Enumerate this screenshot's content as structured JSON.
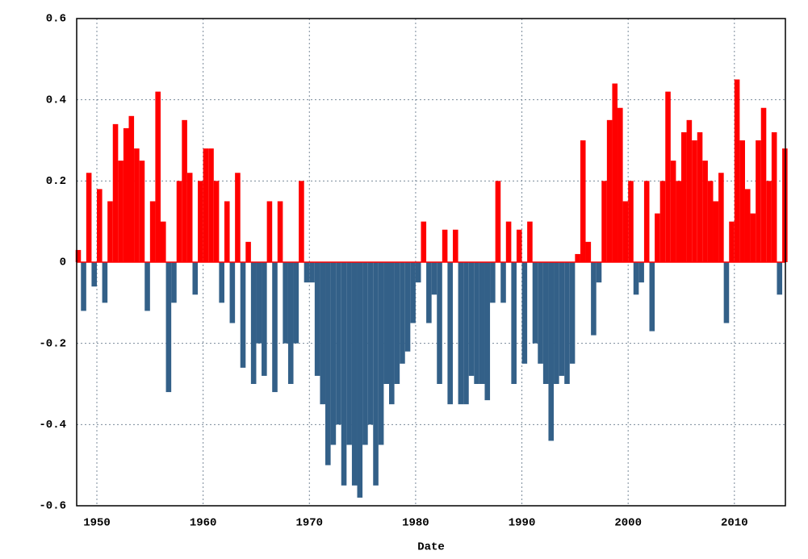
{
  "chart_data": {
    "type": "bar",
    "x_label": "Date",
    "x": [
      1948.0,
      1948.5,
      1949.0,
      1949.5,
      1950.0,
      1950.5,
      1951.0,
      1951.5,
      1952.0,
      1952.5,
      1953.0,
      1953.5,
      1954.0,
      1954.5,
      1955.0,
      1955.5,
      1956.0,
      1956.5,
      1957.0,
      1957.5,
      1958.0,
      1958.5,
      1959.0,
      1959.5,
      1960.0,
      1960.5,
      1961.0,
      1961.5,
      1962.0,
      1962.5,
      1963.0,
      1963.5,
      1964.0,
      1964.5,
      1965.0,
      1965.5,
      1966.0,
      1966.5,
      1967.0,
      1967.5,
      1968.0,
      1968.5,
      1969.0,
      1969.5,
      1970.0,
      1970.5,
      1971.0,
      1971.5,
      1972.0,
      1972.5,
      1973.0,
      1973.5,
      1974.0,
      1974.5,
      1975.0,
      1975.5,
      1976.0,
      1976.5,
      1977.0,
      1977.5,
      1978.0,
      1978.5,
      1979.0,
      1979.5,
      1980.0,
      1980.5,
      1981.0,
      1981.5,
      1982.0,
      1982.5,
      1983.0,
      1983.5,
      1984.0,
      1984.5,
      1985.0,
      1985.5,
      1986.0,
      1986.5,
      1987.0,
      1987.5,
      1988.0,
      1988.5,
      1989.0,
      1989.5,
      1990.0,
      1990.5,
      1991.0,
      1991.5,
      1992.0,
      1992.5,
      1993.0,
      1993.5,
      1994.0,
      1994.5,
      1995.0,
      1995.5,
      1996.0,
      1996.5,
      1997.0,
      1997.5,
      1998.0,
      1998.5,
      1999.0,
      1999.5,
      2000.0,
      2000.5,
      2001.0,
      2001.5,
      2002.0,
      2002.5,
      2003.0,
      2003.5,
      2004.0,
      2004.5,
      2005.0,
      2005.5,
      2006.0,
      2006.5,
      2007.0,
      2007.5,
      2008.0,
      2008.5,
      2009.0,
      2009.5,
      2010.0,
      2010.5,
      2011.0,
      2011.5,
      2012.0,
      2012.5,
      2013.0,
      2013.5,
      2014.0,
      2014.5
    ],
    "values": [
      0.03,
      -0.12,
      0.22,
      -0.06,
      0.18,
      -0.1,
      0.15,
      0.34,
      0.25,
      0.33,
      0.36,
      0.28,
      0.25,
      -0.12,
      0.15,
      0.42,
      0.1,
      -0.32,
      -0.1,
      0.2,
      0.35,
      0.22,
      -0.08,
      0.2,
      0.28,
      0.28,
      0.2,
      -0.1,
      0.15,
      -0.15,
      0.22,
      -0.26,
      0.05,
      -0.3,
      -0.2,
      -0.28,
      0.15,
      -0.32,
      0.15,
      -0.2,
      -0.3,
      -0.2,
      0.2,
      -0.05,
      -0.05,
      -0.28,
      -0.35,
      -0.5,
      -0.45,
      -0.4,
      -0.55,
      -0.45,
      -0.55,
      -0.58,
      -0.45,
      -0.4,
      -0.55,
      -0.45,
      -0.3,
      -0.35,
      -0.3,
      -0.25,
      -0.22,
      -0.15,
      -0.05,
      0.1,
      -0.15,
      -0.08,
      -0.3,
      0.08,
      -0.35,
      0.08,
      -0.35,
      -0.35,
      -0.28,
      -0.3,
      -0.3,
      -0.34,
      -0.1,
      0.2,
      -0.1,
      0.1,
      -0.3,
      0.08,
      -0.25,
      0.1,
      -0.2,
      -0.25,
      -0.3,
      -0.44,
      -0.3,
      -0.28,
      -0.3,
      -0.25,
      0.02,
      0.3,
      0.05,
      -0.18,
      -0.05,
      0.2,
      0.35,
      0.44,
      0.38,
      0.15,
      0.2,
      -0.08,
      -0.05,
      0.2,
      -0.17,
      0.12,
      0.2,
      0.42,
      0.25,
      0.2,
      0.32,
      0.35,
      0.3,
      0.32,
      0.25,
      0.2,
      0.15,
      0.22,
      -0.15,
      0.1,
      0.45,
      0.3,
      0.18,
      0.12,
      0.3,
      0.38,
      0.2,
      0.32,
      -0.08,
      0.28
    ],
    "positive_color": "#ff0000",
    "negative_color": "#336088",
    "xlim": [
      1948.1,
      2014.8
    ],
    "xticks": [
      1950,
      1960,
      1970,
      1980,
      1990,
      2000,
      2010
    ],
    "ylim": [
      -0.6,
      0.6
    ],
    "yticks": [
      -0.6,
      -0.4,
      -0.2,
      0,
      0.2,
      0.4,
      0.6
    ],
    "grid": true
  }
}
